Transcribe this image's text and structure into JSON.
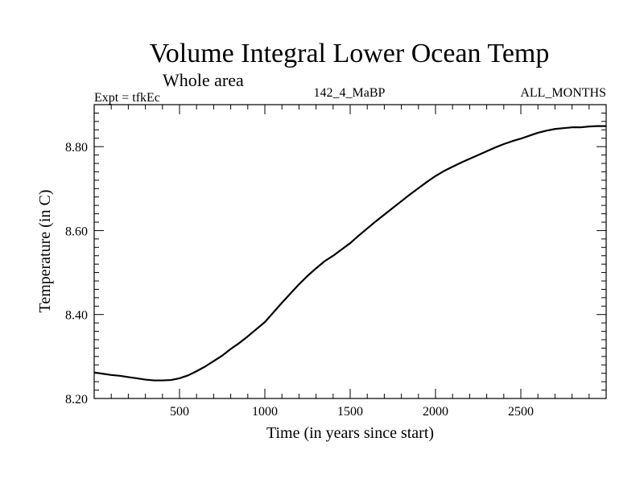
{
  "chart_data": {
    "type": "line",
    "title": "Volume Integral Lower Ocean Temp",
    "subtitle": "Whole area",
    "left_label": "Expt = tfkEc",
    "center_label": "142_4_MaBP",
    "right_label": "ALL_MONTHS",
    "xlabel": "Time (in years since start)",
    "ylabel": "Temperature (in C)",
    "xlim": [
      0,
      3000
    ],
    "ylim": [
      8.2,
      8.9
    ],
    "x_ticks": [
      500,
      1000,
      1500,
      2000,
      2500
    ],
    "x_tick_labels": [
      "500",
      "1000",
      "1500",
      "2000",
      "2500"
    ],
    "y_ticks": [
      8.2,
      8.4,
      8.6,
      8.8
    ],
    "y_tick_labels": [
      "8.20",
      "8.40",
      "8.60",
      "8.80"
    ],
    "grid": false,
    "series": [
      {
        "color": "#000000",
        "x": [
          0,
          50,
          100,
          150,
          200,
          250,
          300,
          350,
          400,
          450,
          500,
          550,
          600,
          650,
          700,
          750,
          800,
          850,
          900,
          950,
          1000,
          1050,
          1100,
          1150,
          1200,
          1250,
          1300,
          1350,
          1400,
          1450,
          1500,
          1550,
          1600,
          1650,
          1700,
          1750,
          1800,
          1850,
          1900,
          1950,
          2000,
          2050,
          2100,
          2150,
          2200,
          2250,
          2300,
          2350,
          2400,
          2450,
          2500,
          2550,
          2600,
          2650,
          2700,
          2750,
          2800,
          2850,
          2900,
          2950,
          3000
        ],
        "values": [
          8.262,
          8.259,
          8.256,
          8.254,
          8.251,
          8.248,
          8.245,
          8.243,
          8.243,
          8.244,
          8.248,
          8.255,
          8.265,
          8.276,
          8.289,
          8.302,
          8.318,
          8.332,
          8.348,
          8.365,
          8.382,
          8.405,
          8.428,
          8.45,
          8.472,
          8.492,
          8.51,
          8.527,
          8.54,
          8.555,
          8.57,
          8.588,
          8.605,
          8.622,
          8.638,
          8.654,
          8.67,
          8.686,
          8.701,
          8.716,
          8.73,
          8.742,
          8.752,
          8.762,
          8.771,
          8.78,
          8.789,
          8.798,
          8.806,
          8.813,
          8.819,
          8.826,
          8.833,
          8.838,
          8.842,
          8.844,
          8.846,
          8.846,
          8.848,
          8.849,
          8.849
        ]
      }
    ]
  }
}
